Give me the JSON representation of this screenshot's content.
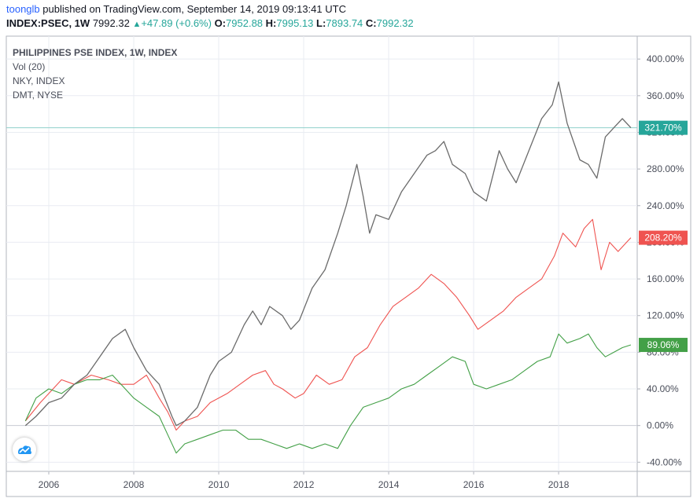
{
  "header": {
    "user": "toonglb",
    "published_text": "published on TradingView.com, September 14, 2019 09:13:41 UTC",
    "symbol": "INDEX:PSEC, 1W",
    "price": "7992.32",
    "change_arrow": "▲",
    "change": "+47.89 (+0.6%)",
    "open_label": "O:",
    "open": "7952.88",
    "high_label": "H:",
    "high": "7995.13",
    "low_label": "L:",
    "low": "7893.74",
    "close_label": "C:",
    "close": "7992.32"
  },
  "legend": [
    "PHILIPPINES PSE INDEX, 1W, INDEX",
    "Vol (20)",
    "NKY, INDEX",
    "DMT, NYSE"
  ],
  "colors": {
    "psec": "#6b6b6b",
    "nky": "#ef5350",
    "dmt": "#43a047",
    "last_psec_badge": "#26a69a",
    "last_nky_badge": "#ef5350",
    "last_dmt_badge": "#43a047",
    "grid": "#e9ecf2",
    "axis": "#b2b5be"
  },
  "chart_data": {
    "type": "line",
    "x_ticks": [
      "2006",
      "2008",
      "2010",
      "2012",
      "2014",
      "2016",
      "2018"
    ],
    "y_ticks": [
      "400.00%",
      "360.00%",
      "320.00%",
      "280.00%",
      "240.00%",
      "200.00%",
      "160.00%",
      "120.00%",
      "80.00%",
      "40.00%",
      "0.00%",
      "-40.00%"
    ],
    "ylim": [
      -50,
      425
    ],
    "xlim": [
      2005.0,
      2019.85
    ],
    "last_values": [
      {
        "series": "PSEC",
        "label": "321.70%"
      },
      {
        "series": "NKY",
        "label": "208.20%"
      },
      {
        "series": "DMT",
        "label": "89.06%"
      }
    ],
    "series": [
      {
        "name": "PHILIPPINES PSE INDEX",
        "key": "psec",
        "x": [
          2005.45,
          2005.7,
          2006.0,
          2006.3,
          2006.6,
          2006.9,
          2007.2,
          2007.5,
          2007.8,
          2008.0,
          2008.3,
          2008.6,
          2008.9,
          2009.0,
          2009.2,
          2009.5,
          2009.8,
          2010.0,
          2010.3,
          2010.6,
          2010.8,
          2011.0,
          2011.2,
          2011.5,
          2011.7,
          2011.9,
          2012.2,
          2012.5,
          2012.8,
          2013.0,
          2013.25,
          2013.4,
          2013.55,
          2013.7,
          2014.0,
          2014.3,
          2014.6,
          2014.9,
          2015.1,
          2015.3,
          2015.5,
          2015.8,
          2016.0,
          2016.3,
          2016.6,
          2016.8,
          2017.0,
          2017.3,
          2017.6,
          2017.85,
          2018.0,
          2018.2,
          2018.5,
          2018.7,
          2018.9,
          2019.1,
          2019.3,
          2019.5,
          2019.7
        ],
        "y": [
          0,
          10,
          25,
          30,
          45,
          55,
          75,
          95,
          105,
          85,
          60,
          45,
          10,
          0,
          5,
          20,
          55,
          70,
          80,
          110,
          125,
          110,
          130,
          120,
          105,
          115,
          150,
          170,
          210,
          240,
          285,
          250,
          210,
          230,
          225,
          255,
          275,
          295,
          300,
          310,
          285,
          275,
          255,
          245,
          300,
          280,
          265,
          300,
          335,
          350,
          375,
          330,
          290,
          285,
          270,
          315,
          325,
          335,
          325
        ]
      },
      {
        "name": "NKY",
        "key": "nky",
        "x": [
          2005.45,
          2005.8,
          2006.0,
          2006.3,
          2006.6,
          2007.0,
          2007.4,
          2007.7,
          2008.0,
          2008.3,
          2008.6,
          2008.8,
          2009.0,
          2009.2,
          2009.5,
          2009.8,
          2010.2,
          2010.5,
          2010.8,
          2011.1,
          2011.3,
          2011.5,
          2011.8,
          2012.0,
          2012.3,
          2012.6,
          2012.9,
          2013.2,
          2013.5,
          2013.8,
          2014.1,
          2014.4,
          2014.7,
          2015.0,
          2015.3,
          2015.6,
          2015.9,
          2016.1,
          2016.4,
          2016.7,
          2017.0,
          2017.3,
          2017.6,
          2017.9,
          2018.1,
          2018.4,
          2018.6,
          2018.8,
          2019.0,
          2019.2,
          2019.4,
          2019.6,
          2019.7
        ],
        "y": [
          5,
          25,
          35,
          50,
          45,
          55,
          50,
          45,
          45,
          55,
          30,
          15,
          -5,
          5,
          10,
          25,
          35,
          45,
          55,
          60,
          45,
          40,
          30,
          35,
          55,
          45,
          50,
          75,
          85,
          110,
          130,
          140,
          150,
          165,
          155,
          140,
          120,
          105,
          115,
          125,
          140,
          150,
          160,
          185,
          210,
          195,
          215,
          225,
          170,
          200,
          190,
          200,
          205
        ]
      },
      {
        "name": "DMT",
        "key": "dmt",
        "x": [
          2005.45,
          2005.7,
          2006.0,
          2006.3,
          2006.6,
          2006.9,
          2007.2,
          2007.5,
          2007.8,
          2008.0,
          2008.3,
          2008.6,
          2008.8,
          2009.0,
          2009.2,
          2009.5,
          2009.8,
          2010.1,
          2010.4,
          2010.7,
          2011.0,
          2011.3,
          2011.6,
          2011.9,
          2012.2,
          2012.5,
          2012.8,
          2013.1,
          2013.4,
          2013.7,
          2014.0,
          2014.3,
          2014.6,
          2014.9,
          2015.2,
          2015.5,
          2015.8,
          2016.0,
          2016.3,
          2016.6,
          2016.9,
          2017.2,
          2017.5,
          2017.8,
          2018.0,
          2018.2,
          2018.5,
          2018.7,
          2018.9,
          2019.1,
          2019.3,
          2019.5,
          2019.7
        ],
        "y": [
          5,
          30,
          40,
          35,
          45,
          50,
          50,
          55,
          40,
          30,
          20,
          10,
          -10,
          -30,
          -20,
          -15,
          -10,
          -5,
          -5,
          -15,
          -15,
          -20,
          -25,
          -20,
          -25,
          -20,
          -25,
          0,
          20,
          25,
          30,
          40,
          45,
          55,
          65,
          75,
          70,
          45,
          40,
          45,
          50,
          60,
          70,
          75,
          100,
          90,
          95,
          100,
          85,
          75,
          80,
          85,
          88
        ]
      }
    ]
  }
}
